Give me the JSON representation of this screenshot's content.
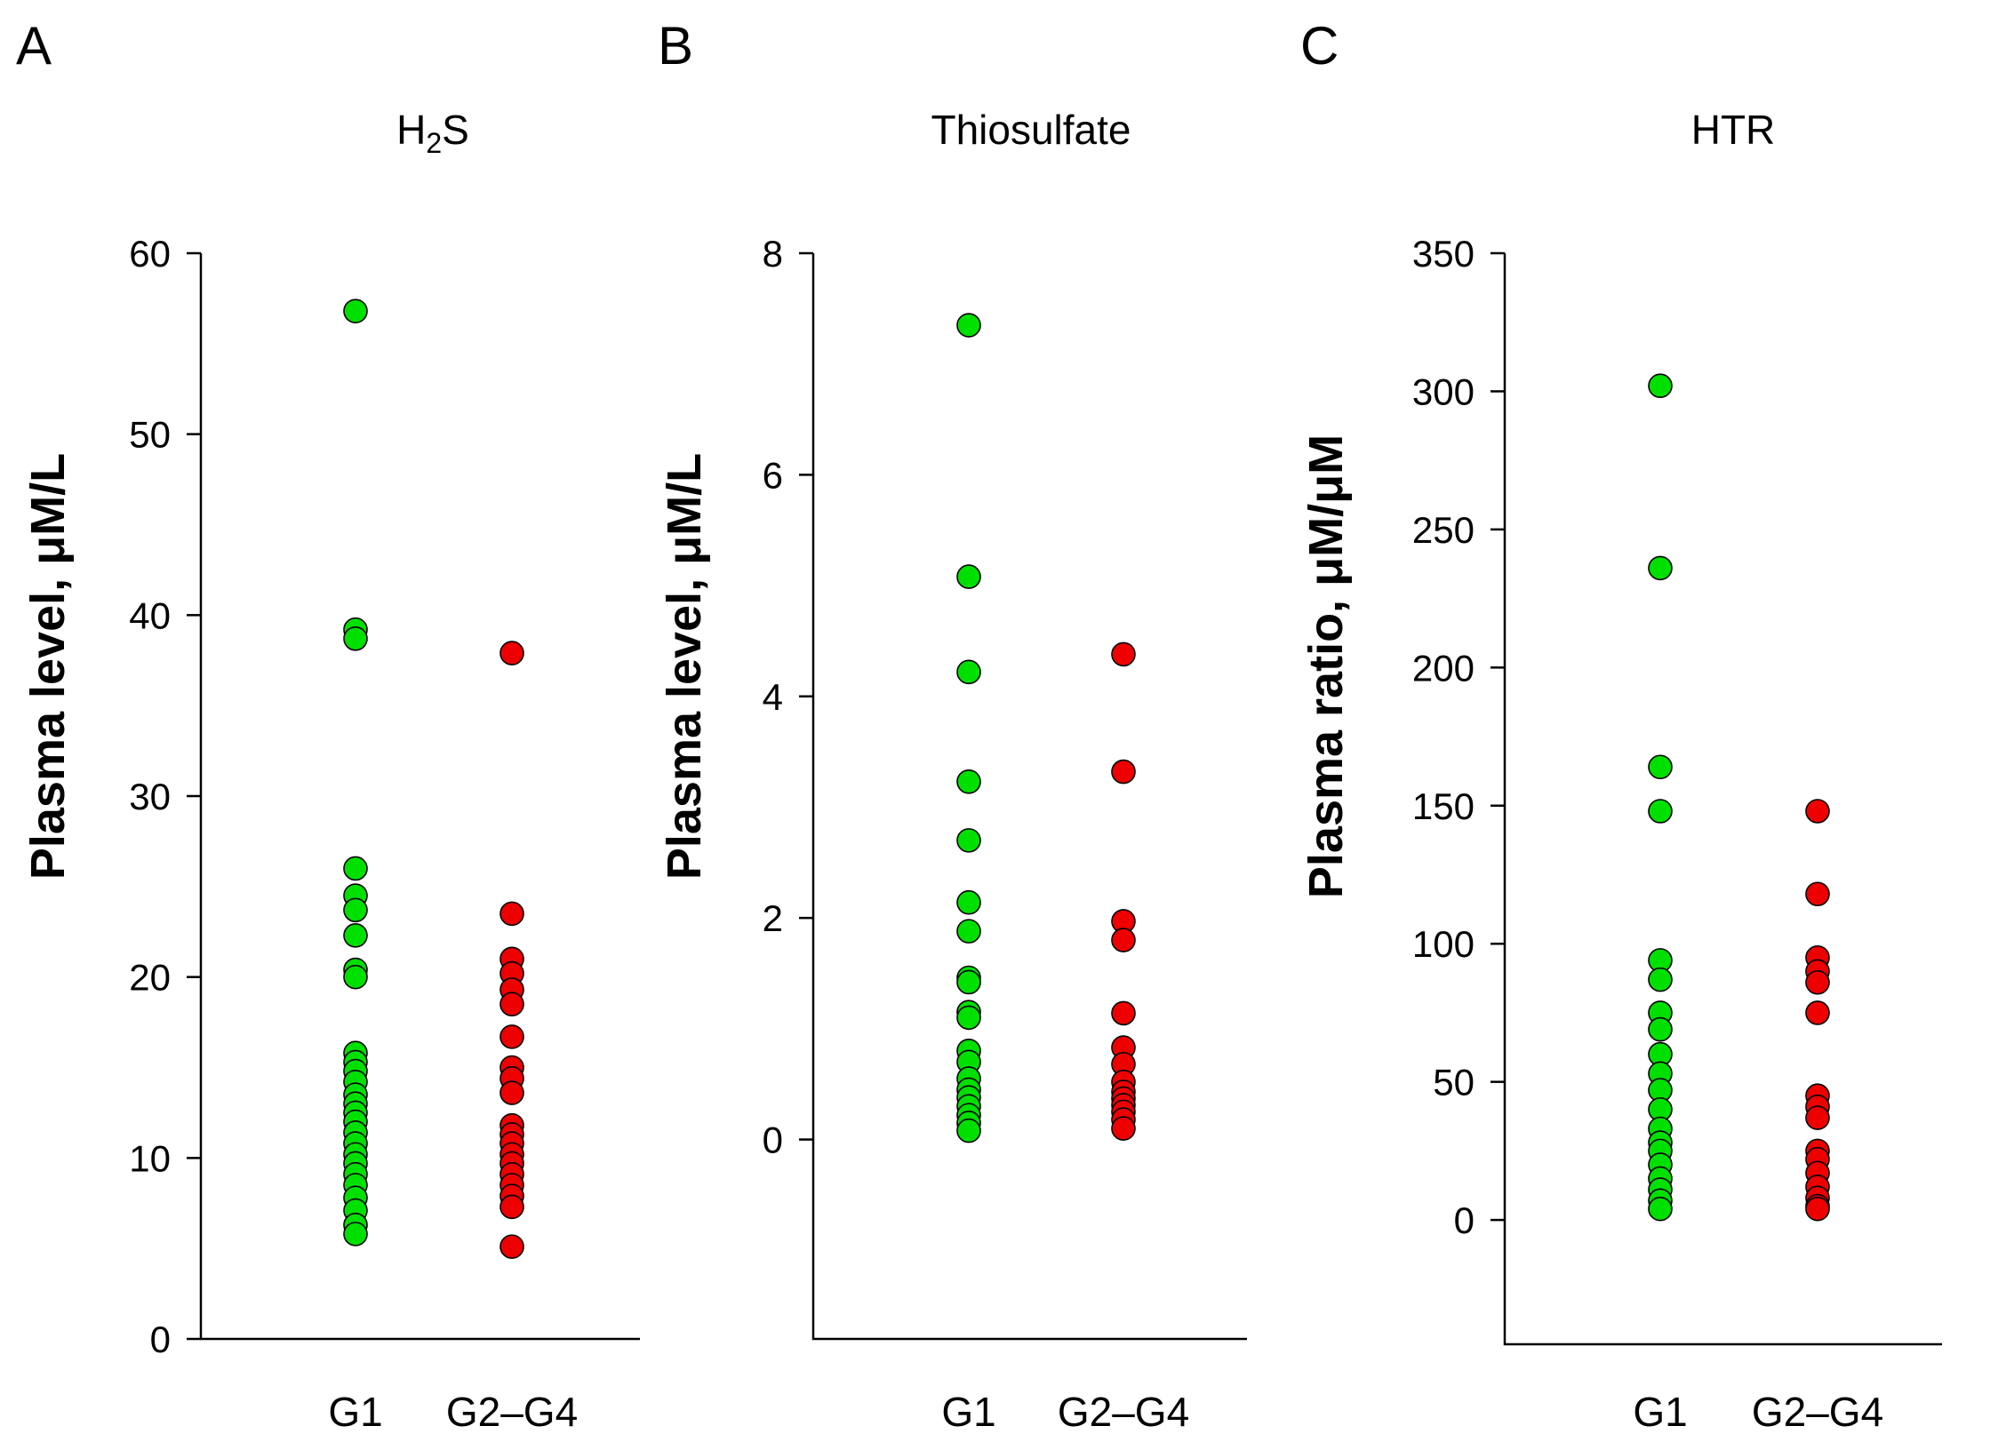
{
  "chart_data": [
    {
      "type": "scatter",
      "panel_label": "A",
      "title": "H₂S",
      "ylabel": "Plasma level, μM/L",
      "ylim": [
        0,
        60
      ],
      "yticks": [
        0,
        10,
        20,
        30,
        40,
        50,
        60
      ],
      "categories": [
        "G1",
        "G2–G4"
      ],
      "series": [
        {
          "name": "G1",
          "category": "G1",
          "color": "#00e000",
          "values": [
            56.8,
            39.2,
            38.7,
            26.0,
            24.5,
            23.7,
            22.3,
            20.4,
            20.0,
            15.8,
            15.3,
            14.8,
            14.2,
            13.5,
            13.0,
            12.5,
            12.0,
            11.4,
            10.8,
            10.2,
            9.7,
            9.1,
            8.5,
            7.8,
            7.1,
            6.3,
            5.8
          ]
        },
        {
          "name": "G2–G4",
          "category": "G2–G4",
          "color": "#ee0000",
          "values": [
            37.9,
            23.5,
            21.0,
            20.2,
            19.3,
            18.5,
            16.7,
            15.0,
            14.4,
            13.6,
            11.8,
            11.3,
            10.8,
            10.2,
            9.7,
            9.1,
            8.5,
            7.9,
            7.3,
            5.1
          ]
        }
      ]
    },
    {
      "type": "scatter",
      "panel_label": "B",
      "title": "Thiosulfate",
      "ylabel": "Plasma level, μM/L",
      "ylim": [
        -1.8,
        8
      ],
      "yticks": [
        0,
        2,
        4,
        6,
        8
      ],
      "categories": [
        "G1",
        "G2–G4"
      ],
      "series": [
        {
          "name": "G1",
          "category": "G1",
          "color": "#00e000",
          "values": [
            7.35,
            5.08,
            4.22,
            3.23,
            2.7,
            2.14,
            1.88,
            1.46,
            1.42,
            1.15,
            1.1,
            0.8,
            0.7,
            0.55,
            0.45,
            0.38,
            0.3,
            0.22,
            0.15,
            0.08
          ]
        },
        {
          "name": "G2–G4",
          "category": "G2–G4",
          "color": "#ee0000",
          "values": [
            4.38,
            3.32,
            1.97,
            1.8,
            1.14,
            0.83,
            0.68,
            0.52,
            0.43,
            0.37,
            0.31,
            0.25,
            0.18,
            0.1
          ]
        }
      ]
    },
    {
      "type": "scatter",
      "panel_label": "C",
      "title": "HTR",
      "ylabel": "Plasma ratio, μM/μM",
      "ylim": [
        -45,
        350
      ],
      "yticks": [
        0,
        50,
        100,
        150,
        200,
        250,
        300,
        350
      ],
      "categories": [
        "G1",
        "G2–G4"
      ],
      "series": [
        {
          "name": "G1",
          "category": "G1",
          "color": "#00e000",
          "values": [
            302,
            236,
            164,
            148,
            94,
            87,
            75,
            69,
            60,
            53,
            47,
            40,
            33,
            28,
            25,
            20,
            15,
            11,
            7,
            4
          ]
        },
        {
          "name": "G2–G4",
          "category": "G2–G4",
          "color": "#ee0000",
          "values": [
            148,
            118,
            95,
            90,
            86,
            75,
            45,
            41,
            37,
            25,
            22,
            17,
            12,
            8,
            5,
            4
          ]
        }
      ]
    }
  ]
}
